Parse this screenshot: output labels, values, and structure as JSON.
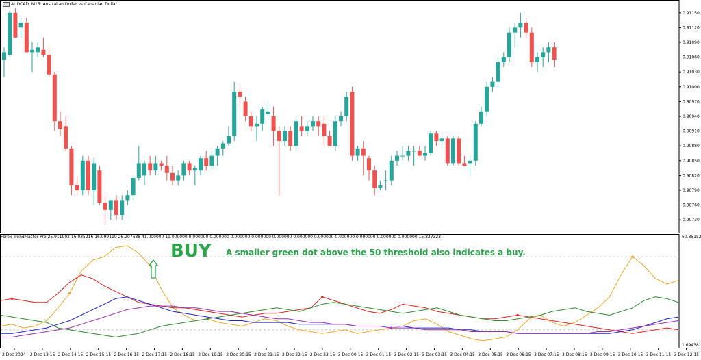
{
  "chart": {
    "title": "AUDCAD, M15:  Australian Dollar vs Canadian Dollar",
    "indicator_label": "Forex TrendMaster Pro 25.911902 16.035216 16.099119 26.207688 41.000000 19.000000 0.000000 0.000000 0.000000 0.000000 0.000000 0.000000 0.000000 0.000000 0.000000 0.000000 0.000000 15.827323",
    "price_ticks": [
      "0.91150",
      "0.91120",
      "0.91090",
      "0.91060",
      "0.91030",
      "0.91000",
      "0.90970",
      "0.90940",
      "0.90910",
      "0.90880",
      "0.90850",
      "0.90820",
      "0.90790",
      "0.90760",
      "0.90730"
    ],
    "indicator_ticks": [
      "60.851526",
      "1.694381"
    ],
    "time_ticks": [
      "2 Dec 2024",
      "2 Dec 13:15",
      "2 Dec 14:15",
      "2 Dec 15:15",
      "2 Dec 16:15",
      "2 Dec 17:15",
      "2 Dec 18:15",
      "2 Dec 19:15",
      "2 Dec 20:15",
      "2 Dec 21:15",
      "2 Dec 22:15",
      "2 Dec 23:15",
      "3 Dec 00:15",
      "3 Dec 01:15",
      "3 Dec 02:15",
      "3 Dec 03:15",
      "3 Dec 04:15",
      "3 Dec 05:15",
      "3 Dec 06:15",
      "3 Dec 07:15",
      "3 Dec 08:15",
      "3 Dec 09:15",
      "3 Dec 10:15",
      "3 Dec 11:15",
      "3 Dec 12:15"
    ],
    "annotation_buy": "BUY",
    "annotation_note": "A smaller green dot above the 50 threshold also indicates a buy.",
    "colors": {
      "bull": "#26a69a",
      "bear": "#ef5350",
      "orange": "#f5a623",
      "red": "#e0201c",
      "green": "#2e8b2e",
      "blue": "#2020d0",
      "purple": "#9b30b0",
      "arrow": "#2aa64a"
    },
    "icons": {
      "buy_arrow": "up-arrow-icon",
      "symbol_flag": "flag-icon"
    }
  },
  "chart_data": {
    "type": "candlestick",
    "price_ylim": [
      0.90715,
      0.91165
    ],
    "candles": [
      {
        "o": 0.91055,
        "h": 0.9108,
        "l": 0.9102,
        "c": 0.9107
      },
      {
        "o": 0.91065,
        "h": 0.91155,
        "l": 0.9106,
        "c": 0.9115
      },
      {
        "o": 0.9115,
        "h": 0.9116,
        "l": 0.911,
        "c": 0.911
      },
      {
        "o": 0.9112,
        "h": 0.9114,
        "l": 0.911,
        "c": 0.9113
      },
      {
        "o": 0.9113,
        "h": 0.9114,
        "l": 0.9107,
        "c": 0.9107
      },
      {
        "o": 0.9107,
        "h": 0.9109,
        "l": 0.9103,
        "c": 0.91075
      },
      {
        "o": 0.9107,
        "h": 0.9109,
        "l": 0.9106,
        "c": 0.9108
      },
      {
        "o": 0.91075,
        "h": 0.911,
        "l": 0.9106,
        "c": 0.91065
      },
      {
        "o": 0.91065,
        "h": 0.9108,
        "l": 0.9102,
        "c": 0.91025
      },
      {
        "o": 0.91025,
        "h": 0.9103,
        "l": 0.9091,
        "c": 0.9093
      },
      {
        "o": 0.9093,
        "h": 0.9095,
        "l": 0.909,
        "c": 0.90915
      },
      {
        "o": 0.9092,
        "h": 0.9094,
        "l": 0.9087,
        "c": 0.90875
      },
      {
        "o": 0.90875,
        "h": 0.9088,
        "l": 0.9078,
        "c": 0.908
      },
      {
        "o": 0.908,
        "h": 0.9082,
        "l": 0.9078,
        "c": 0.9079
      },
      {
        "o": 0.9079,
        "h": 0.9086,
        "l": 0.9078,
        "c": 0.9085
      },
      {
        "o": 0.9085,
        "h": 0.9086,
        "l": 0.9078,
        "c": 0.9079
      },
      {
        "o": 0.9079,
        "h": 0.90855,
        "l": 0.9076,
        "c": 0.90845
      },
      {
        "o": 0.9083,
        "h": 0.9084,
        "l": 0.9076,
        "c": 0.90765
      },
      {
        "o": 0.90765,
        "h": 0.9078,
        "l": 0.9072,
        "c": 0.9075
      },
      {
        "o": 0.9075,
        "h": 0.9077,
        "l": 0.9073,
        "c": 0.9077
      },
      {
        "o": 0.9077,
        "h": 0.9078,
        "l": 0.9073,
        "c": 0.9074
      },
      {
        "o": 0.9074,
        "h": 0.9078,
        "l": 0.9073,
        "c": 0.9077
      },
      {
        "o": 0.9077,
        "h": 0.9079,
        "l": 0.9076,
        "c": 0.9078
      },
      {
        "o": 0.9078,
        "h": 0.9082,
        "l": 0.9077,
        "c": 0.90815
      },
      {
        "o": 0.90815,
        "h": 0.9088,
        "l": 0.9081,
        "c": 0.90845
      },
      {
        "o": 0.9082,
        "h": 0.9085,
        "l": 0.908,
        "c": 0.90845
      },
      {
        "o": 0.90845,
        "h": 0.9086,
        "l": 0.9082,
        "c": 0.9083
      },
      {
        "o": 0.9083,
        "h": 0.9086,
        "l": 0.9082,
        "c": 0.90845
      },
      {
        "o": 0.90845,
        "h": 0.9085,
        "l": 0.9083,
        "c": 0.9084
      },
      {
        "o": 0.9084,
        "h": 0.9086,
        "l": 0.9081,
        "c": 0.90825
      },
      {
        "o": 0.90825,
        "h": 0.9084,
        "l": 0.908,
        "c": 0.9081
      },
      {
        "o": 0.9081,
        "h": 0.9083,
        "l": 0.908,
        "c": 0.9082
      },
      {
        "o": 0.9082,
        "h": 0.9085,
        "l": 0.9081,
        "c": 0.90845
      },
      {
        "o": 0.90845,
        "h": 0.9085,
        "l": 0.9082,
        "c": 0.9083
      },
      {
        "o": 0.9083,
        "h": 0.9084,
        "l": 0.908,
        "c": 0.90835
      },
      {
        "o": 0.9083,
        "h": 0.9086,
        "l": 0.9082,
        "c": 0.90855
      },
      {
        "o": 0.90855,
        "h": 0.9087,
        "l": 0.9083,
        "c": 0.9084
      },
      {
        "o": 0.9084,
        "h": 0.9087,
        "l": 0.9083,
        "c": 0.9086
      },
      {
        "o": 0.9086,
        "h": 0.9088,
        "l": 0.9084,
        "c": 0.90875
      },
      {
        "o": 0.90875,
        "h": 0.9089,
        "l": 0.9086,
        "c": 0.90885
      },
      {
        "o": 0.90885,
        "h": 0.9092,
        "l": 0.9088,
        "c": 0.909
      },
      {
        "o": 0.909,
        "h": 0.9101,
        "l": 0.9089,
        "c": 0.9099
      },
      {
        "o": 0.9099,
        "h": 0.91,
        "l": 0.9096,
        "c": 0.9098
      },
      {
        "o": 0.9097,
        "h": 0.9098,
        "l": 0.9093,
        "c": 0.9094
      },
      {
        "o": 0.9094,
        "h": 0.9095,
        "l": 0.9091,
        "c": 0.9092
      },
      {
        "o": 0.9092,
        "h": 0.9094,
        "l": 0.9089,
        "c": 0.90925
      },
      {
        "o": 0.90925,
        "h": 0.9096,
        "l": 0.9091,
        "c": 0.90955
      },
      {
        "o": 0.90945,
        "h": 0.9097,
        "l": 0.9094,
        "c": 0.9095
      },
      {
        "o": 0.9094,
        "h": 0.9096,
        "l": 0.9088,
        "c": 0.9091
      },
      {
        "o": 0.9091,
        "h": 0.9092,
        "l": 0.9078,
        "c": 0.9089
      },
      {
        "o": 0.9089,
        "h": 0.9092,
        "l": 0.9088,
        "c": 0.9091
      },
      {
        "o": 0.9091,
        "h": 0.9092,
        "l": 0.9087,
        "c": 0.9088
      },
      {
        "o": 0.9088,
        "h": 0.9094,
        "l": 0.9087,
        "c": 0.9093
      },
      {
        "o": 0.9092,
        "h": 0.9094,
        "l": 0.909,
        "c": 0.9091
      },
      {
        "o": 0.9091,
        "h": 0.9093,
        "l": 0.909,
        "c": 0.9092
      },
      {
        "o": 0.9092,
        "h": 0.9094,
        "l": 0.9091,
        "c": 0.9093
      },
      {
        "o": 0.9093,
        "h": 0.9094,
        "l": 0.909,
        "c": 0.9092
      },
      {
        "o": 0.90925,
        "h": 0.9094,
        "l": 0.9088,
        "c": 0.909
      },
      {
        "o": 0.909,
        "h": 0.9091,
        "l": 0.9088,
        "c": 0.9088
      },
      {
        "o": 0.9088,
        "h": 0.9094,
        "l": 0.9087,
        "c": 0.9093
      },
      {
        "o": 0.9093,
        "h": 0.9095,
        "l": 0.9092,
        "c": 0.9094
      },
      {
        "o": 0.9094,
        "h": 0.9099,
        "l": 0.9093,
        "c": 0.9098
      },
      {
        "o": 0.9099,
        "h": 0.91,
        "l": 0.9085,
        "c": 0.9086
      },
      {
        "o": 0.9086,
        "h": 0.9088,
        "l": 0.9085,
        "c": 0.90875
      },
      {
        "o": 0.90875,
        "h": 0.9089,
        "l": 0.9082,
        "c": 0.9086
      },
      {
        "o": 0.90855,
        "h": 0.9086,
        "l": 0.9081,
        "c": 0.9083
      },
      {
        "o": 0.9083,
        "h": 0.9084,
        "l": 0.9078,
        "c": 0.90795
      },
      {
        "o": 0.90795,
        "h": 0.9081,
        "l": 0.9079,
        "c": 0.908
      },
      {
        "o": 0.9081,
        "h": 0.9083,
        "l": 0.9079,
        "c": 0.9081
      },
      {
        "o": 0.9081,
        "h": 0.9086,
        "l": 0.908,
        "c": 0.9085
      },
      {
        "o": 0.9085,
        "h": 0.9087,
        "l": 0.9084,
        "c": 0.9086
      },
      {
        "o": 0.9086,
        "h": 0.9088,
        "l": 0.9085,
        "c": 0.9086
      },
      {
        "o": 0.9086,
        "h": 0.9088,
        "l": 0.9085,
        "c": 0.9087
      },
      {
        "o": 0.9087,
        "h": 0.9088,
        "l": 0.9084,
        "c": 0.9087
      },
      {
        "o": 0.9087,
        "h": 0.9088,
        "l": 0.9086,
        "c": 0.9086
      },
      {
        "o": 0.9086,
        "h": 0.9088,
        "l": 0.9085,
        "c": 0.90865
      },
      {
        "o": 0.90865,
        "h": 0.9091,
        "l": 0.9086,
        "c": 0.90905
      },
      {
        "o": 0.90905,
        "h": 0.9091,
        "l": 0.9088,
        "c": 0.9089
      },
      {
        "o": 0.9089,
        "h": 0.909,
        "l": 0.9088,
        "c": 0.90895
      },
      {
        "o": 0.90895,
        "h": 0.909,
        "l": 0.9084,
        "c": 0.90845
      },
      {
        "o": 0.90845,
        "h": 0.909,
        "l": 0.9084,
        "c": 0.90895
      },
      {
        "o": 0.90895,
        "h": 0.909,
        "l": 0.9084,
        "c": 0.90845
      },
      {
        "o": 0.90845,
        "h": 0.9086,
        "l": 0.9084,
        "c": 0.9084
      },
      {
        "o": 0.90845,
        "h": 0.9086,
        "l": 0.9082,
        "c": 0.9085
      },
      {
        "o": 0.9085,
        "h": 0.9093,
        "l": 0.9084,
        "c": 0.90925
      },
      {
        "o": 0.90925,
        "h": 0.9096,
        "l": 0.9092,
        "c": 0.9095
      },
      {
        "o": 0.9095,
        "h": 0.9101,
        "l": 0.9094,
        "c": 0.91
      },
      {
        "o": 0.91,
        "h": 0.9102,
        "l": 0.9099,
        "c": 0.9101
      },
      {
        "o": 0.9101,
        "h": 0.9106,
        "l": 0.91,
        "c": 0.9105
      },
      {
        "o": 0.9105,
        "h": 0.9107,
        "l": 0.9104,
        "c": 0.9106
      },
      {
        "o": 0.9106,
        "h": 0.9112,
        "l": 0.9105,
        "c": 0.9111
      },
      {
        "o": 0.9111,
        "h": 0.9113,
        "l": 0.9108,
        "c": 0.9112
      },
      {
        "o": 0.9112,
        "h": 0.9115,
        "l": 0.911,
        "c": 0.9113
      },
      {
        "o": 0.9113,
        "h": 0.9114,
        "l": 0.911,
        "c": 0.9111
      },
      {
        "o": 0.9111,
        "h": 0.9112,
        "l": 0.9104,
        "c": 0.9105
      },
      {
        "o": 0.9105,
        "h": 0.9107,
        "l": 0.9103,
        "c": 0.9106
      },
      {
        "o": 0.9106,
        "h": 0.9108,
        "l": 0.9104,
        "c": 0.9107
      },
      {
        "o": 0.9107,
        "h": 0.9109,
        "l": 0.9105,
        "c": 0.9108
      },
      {
        "o": 0.9108,
        "h": 0.9109,
        "l": 0.9104,
        "c": 0.91055
      }
    ],
    "indicator_ylim": [
      1.694381,
      60.851526
    ],
    "indicator_series": [
      {
        "color_key": "orange",
        "values": [
          12,
          13,
          11,
          12,
          15,
          22,
          30,
          42,
          48,
          50,
          55,
          56,
          52,
          45,
          32,
          22,
          18,
          15,
          16,
          14,
          13,
          12,
          14,
          16,
          15,
          12,
          10,
          9,
          8,
          9,
          10,
          8,
          9,
          10,
          11,
          12,
          15,
          16,
          13,
          9,
          7,
          5,
          4,
          5,
          6,
          10,
          16,
          18,
          14,
          12,
          14,
          18,
          22,
          28,
          40,
          50,
          45,
          38,
          35,
          37
        ]
      },
      {
        "color_key": "red",
        "values": [
          26,
          27,
          26,
          25,
          25,
          30,
          36,
          40,
          38,
          34,
          31,
          28,
          25,
          24,
          23,
          22,
          22,
          21,
          20,
          19,
          18,
          17,
          18,
          19,
          19,
          20,
          21,
          22,
          28,
          26,
          24,
          22,
          20,
          19,
          21,
          24,
          23,
          22,
          20,
          19,
          18,
          17,
          16,
          16,
          17,
          18,
          17,
          16,
          15,
          14,
          13,
          12,
          11,
          10,
          9,
          8,
          9,
          10,
          11,
          10
        ]
      },
      {
        "color_key": "green",
        "values": [
          18,
          17,
          16,
          15,
          14,
          11,
          10,
          9,
          8,
          7,
          6,
          7,
          8,
          10,
          12,
          13,
          14,
          15,
          16,
          17,
          18,
          19,
          20,
          21,
          22,
          21,
          20,
          22,
          24,
          25,
          24,
          23,
          22,
          21,
          20,
          19,
          20,
          21,
          22,
          20,
          18,
          17,
          16,
          15,
          15,
          16,
          17,
          18,
          20,
          21,
          22,
          20,
          19,
          18,
          20,
          22,
          26,
          28,
          27,
          25
        ]
      },
      {
        "color_key": "blue",
        "values": [
          8,
          8,
          9,
          10,
          11,
          13,
          15,
          18,
          21,
          24,
          27,
          28,
          26,
          24,
          22,
          20,
          19,
          18,
          17,
          16,
          15,
          15,
          14,
          14,
          14,
          14,
          13,
          13,
          13,
          13,
          13,
          12,
          12,
          12,
          12,
          12,
          11,
          11,
          11,
          11,
          10,
          10,
          9,
          9,
          9,
          8,
          8,
          8,
          8,
          8,
          8,
          8,
          8,
          8,
          9,
          10,
          12,
          14,
          16,
          17
        ]
      },
      {
        "color_key": "purple",
        "values": [
          6,
          6,
          7,
          8,
          9,
          10,
          11,
          13,
          15,
          17,
          19,
          21,
          22,
          23,
          23,
          23,
          22,
          22,
          21,
          20,
          20,
          19,
          18,
          17,
          16,
          16,
          15,
          14,
          14,
          13,
          13,
          12,
          12,
          12,
          11,
          11,
          11,
          10,
          10,
          10,
          10,
          9,
          9,
          9,
          9,
          8,
          8,
          8,
          8,
          8,
          8,
          8,
          9,
          9,
          10,
          11,
          12,
          13,
          14,
          15
        ]
      }
    ],
    "indicator_dots": [
      {
        "color_key": "red",
        "index": 1
      },
      {
        "color_key": "red",
        "index": 28
      },
      {
        "color_key": "red",
        "index": 45
      },
      {
        "color_key": "orange",
        "index": 6
      },
      {
        "color_key": "orange",
        "index": 55
      },
      {
        "color_key": "green",
        "index": 18
      },
      {
        "color_key": "purple",
        "index": 34
      }
    ]
  }
}
